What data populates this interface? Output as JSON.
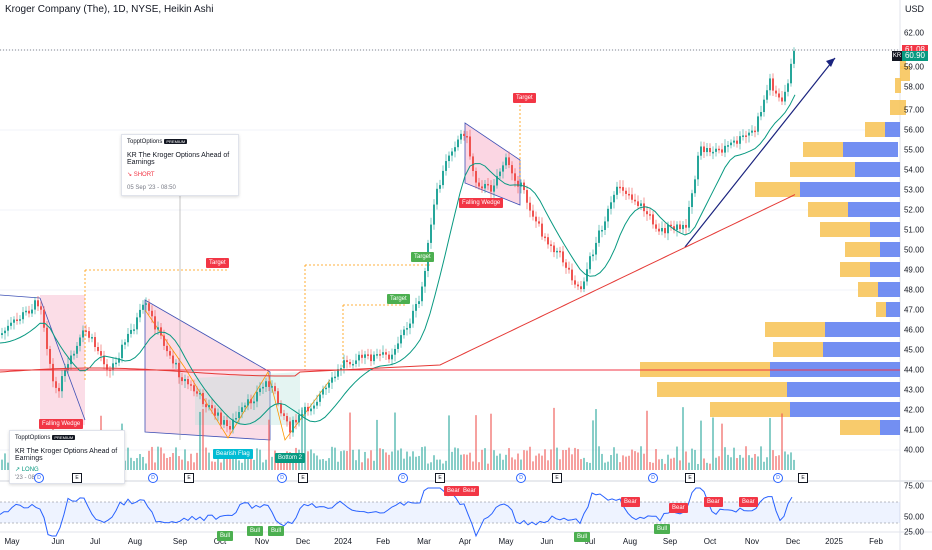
{
  "header": {
    "symbol_title": "Kroger Company (The), 1D, NYSE, Heikin Ashi",
    "currency": "USD"
  },
  "price_axis": {
    "labels": [
      "62.00",
      "59.00",
      "58.00",
      "57.00",
      "56.00",
      "55.00",
      "54.00",
      "53.00",
      "52.00",
      "51.00",
      "50.00",
      "49.00",
      "48.00",
      "47.00",
      "46.00",
      "45.00",
      "44.00",
      "43.00",
      "42.00",
      "41.00",
      "40.00"
    ],
    "last_price_label": "61.08",
    "current_label": "60.90",
    "ticker_badge": "KR"
  },
  "rsi_axis": {
    "labels": [
      "75.00",
      "50.00",
      "25.00"
    ]
  },
  "time_axis": {
    "labels": [
      "May",
      "Jun",
      "Jul",
      "Aug",
      "Sep",
      "Oct",
      "Nov",
      "Dec",
      "2024",
      "Feb",
      "Mar",
      "Apr",
      "May",
      "Jun",
      "Jul",
      "Aug",
      "Sep",
      "Oct",
      "Nov",
      "Dec",
      "2025",
      "Feb"
    ]
  },
  "annotations": {
    "falling_wedge_1": "Falling Wedge",
    "falling_wedge_2": "Falling Wedge",
    "bearish_flag": "Bearish Flag",
    "bottom_2": "Bottom 2",
    "target_1": "Target",
    "target_2": "Target",
    "target_3": "Target",
    "target_4": "Target"
  },
  "idea_cards": {
    "short": {
      "brand": "TopptOptions",
      "badge": "PREMIUM",
      "headline": "KR The Kroger  Options Ahead of Earnings",
      "direction": "SHORT",
      "date": "05 Sep '23 - 08:50"
    },
    "long": {
      "brand": "TopptOptions",
      "badge": "PREMIUM",
      "headline": "KR The Kroger Options Ahead of Earnings",
      "direction": "LONG",
      "date": "'23 - 08:30"
    }
  },
  "rsi_signals": {
    "bear": [
      "Bear",
      "Bear",
      "Bear",
      "Bear",
      "Bear",
      "Bear"
    ],
    "bull": [
      "Bull",
      "Bull",
      "Bull",
      "Bull",
      "Bull"
    ]
  },
  "events": {
    "earnings": "E",
    "dividend": "D"
  },
  "colors": {
    "up": "#26a69a",
    "down": "#ef5350",
    "ma_fast": "#089981",
    "ma_slow": "#e53935",
    "trend": "#1a237e",
    "rsi": "#2962ff",
    "vp_up": "#f7c55c",
    "vp_down": "#5b7bf0"
  }
}
